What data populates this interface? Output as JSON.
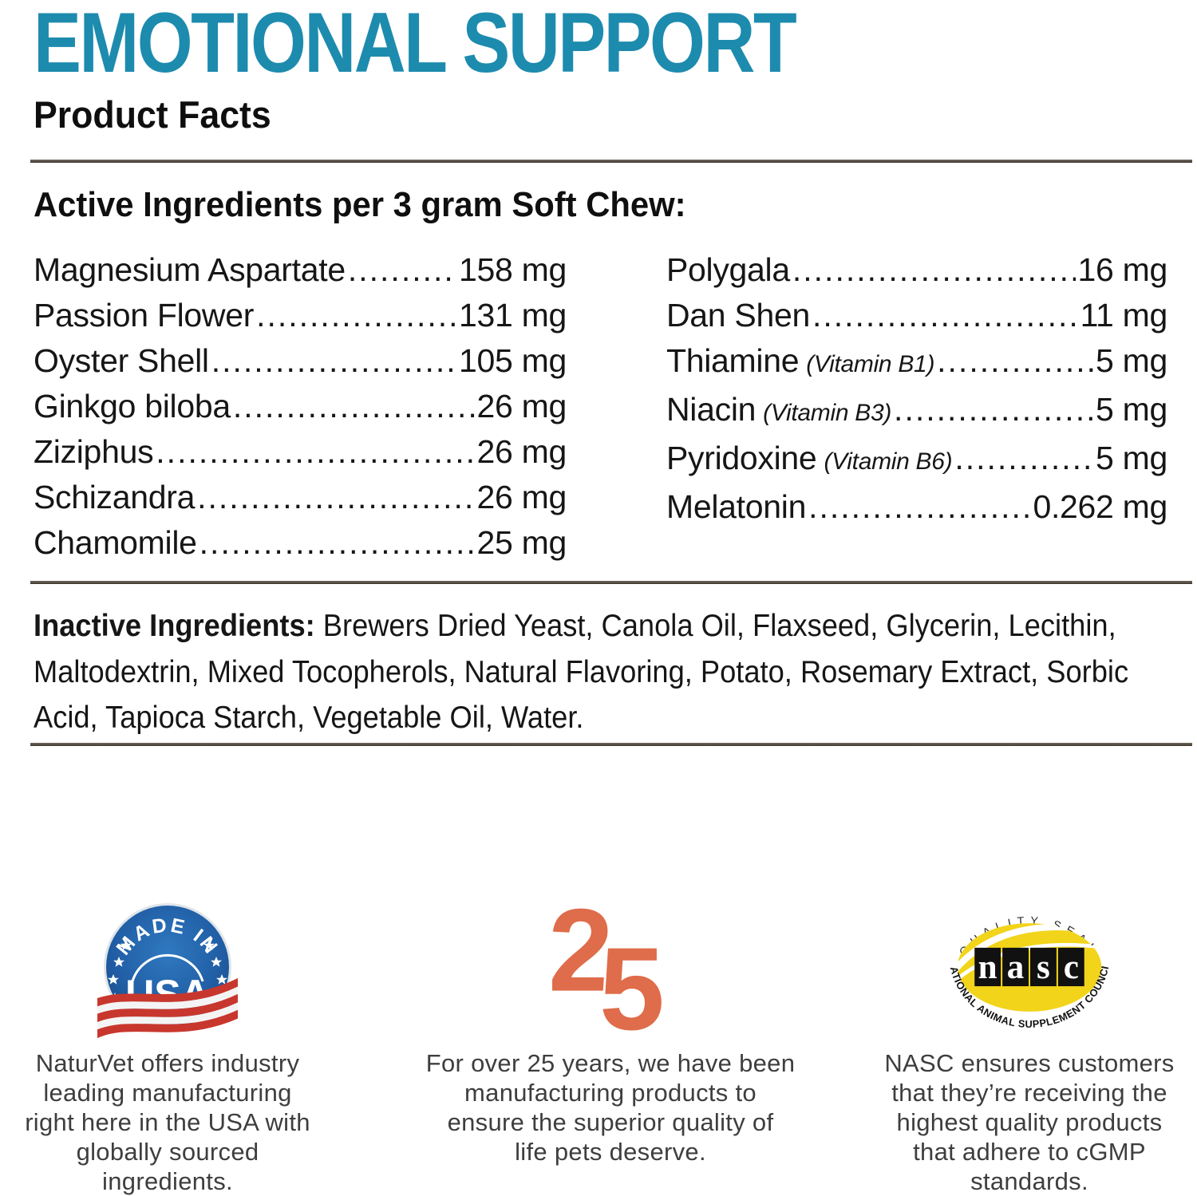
{
  "page": {
    "title": "EMOTIONAL SUPPORT",
    "subtitle": "Product Facts"
  },
  "colors": {
    "title_teal": "#1d8bae",
    "rule_gray": "#47413a",
    "logo_orange": "#df6c4a",
    "usa_badge_blue": "#2266ab",
    "usa_ribbon_red": "#c8372d",
    "nasc_yellow": "#f2d41b"
  },
  "active": {
    "heading": "Active Ingredients per 3 gram Soft Chew:",
    "leader": "................................................................",
    "left": [
      {
        "name": "Magnesium Aspartate",
        "note": "",
        "amount": "158 mg"
      },
      {
        "name": "Passion Flower",
        "note": "",
        "amount": "131 mg"
      },
      {
        "name": "Oyster Shell",
        "note": "",
        "amount": "105 mg"
      },
      {
        "name": "Ginkgo biloba",
        "note": "",
        "amount": "26 mg"
      },
      {
        "name": "Ziziphus",
        "note": "",
        "amount": "26 mg"
      },
      {
        "name": "Schizandra",
        "note": "",
        "amount": "26 mg"
      },
      {
        "name": "Chamomile",
        "note": "",
        "amount": "25 mg"
      }
    ],
    "right": [
      {
        "name": "Polygala",
        "note": "",
        "amount": "16 mg"
      },
      {
        "name": "Dan Shen",
        "note": "",
        "amount": "11 mg"
      },
      {
        "name": "Thiamine",
        "note": "(Vitamin B1)",
        "amount": "5 mg"
      },
      {
        "name": "Niacin",
        "note": "(Vitamin B3)",
        "amount": "5 mg"
      },
      {
        "name": "Pyridoxine",
        "note": "(Vitamin B6)",
        "amount": "5 mg"
      },
      {
        "name": "Melatonin",
        "note": "",
        "amount": "0.262 mg"
      }
    ]
  },
  "inactive": {
    "label": "Inactive Ingredients:",
    "lines": [
      " Brewers Dried Yeast, Canola Oil, Flaxseed, Glycerin, Lecithin,",
      "Maltodextrin, Mixed Tocopherols, Natural Flavoring, Potato, Rosemary Extract, Sorbic",
      "Acid, Tapioca Starch, Vegetable Oil, Water."
    ]
  },
  "badges": {
    "usa": {
      "arc_text": "MADE IN",
      "center_text": "USA",
      "caption": "NaturVet offers industry\nleading manufacturing\nright here in the USA with\nglobally sourced\ningredients."
    },
    "years": {
      "number_left": "2",
      "number_right": "5",
      "caption": "For over 25 years, we have been\nmanufacturing products to\nensure the superior quality of\nlife pets deserve."
    },
    "nasc": {
      "top_arc": "QUALITY SEAL",
      "letters": "nasc",
      "bottom_arc": "NATIONAL ANIMAL SUPPLEMENT COUNCIL",
      "caption": "NASC ensures customers\nthat they’re receiving the\nhighest quality products\nthat adhere to cGMP\nstandards."
    }
  }
}
